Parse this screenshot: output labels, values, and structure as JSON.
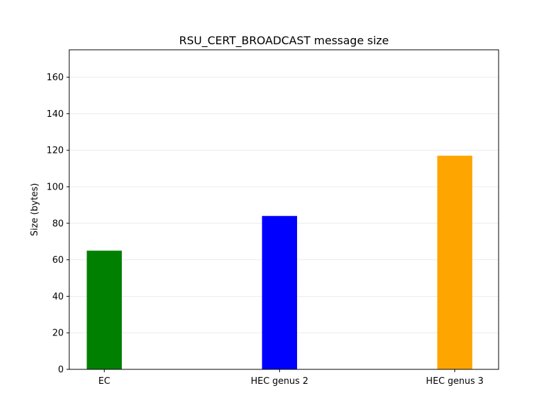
{
  "chart_data": {
    "type": "bar",
    "title": "RSU_CERT_BROADCAST message size",
    "xlabel": "",
    "ylabel": "Size (bytes)",
    "categories": [
      "EC",
      "HEC genus 2",
      "HEC genus 3"
    ],
    "values": [
      65,
      84,
      117
    ],
    "colors": [
      "#008000",
      "#0000ff",
      "#ffa500"
    ],
    "ylim": [
      0,
      175
    ],
    "yticks": [
      0,
      20,
      40,
      60,
      80,
      100,
      120,
      140,
      160
    ],
    "grid": true
  }
}
